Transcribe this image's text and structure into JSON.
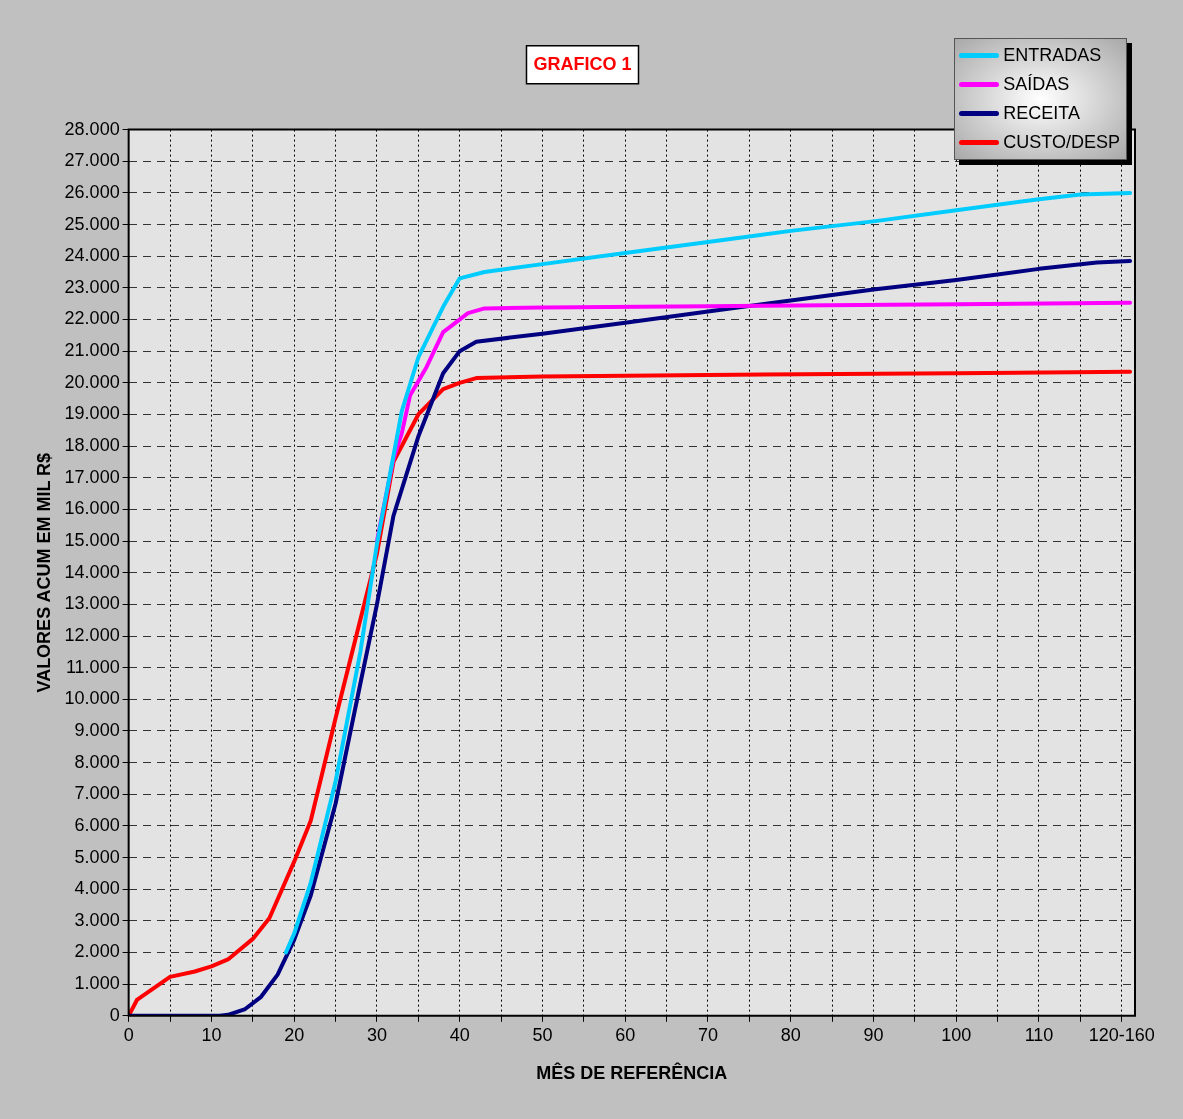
{
  "chart_data": {
    "type": "line",
    "title": "GRAFICO 1",
    "xlabel": "MÊS DE REFERÊNCIA",
    "ylabel": "VALORES ACUM EM MIL R$",
    "legend": "top right",
    "grid": true,
    "marker": "none",
    "line_style": "solid",
    "xlim": [
      0,
      121.6
    ],
    "xticks": [
      0,
      {
        "value": 5,
        "label": null
      },
      10,
      {
        "value": 15,
        "label": null
      },
      20,
      {
        "value": 25,
        "label": null
      },
      30,
      {
        "value": 35,
        "label": null
      },
      40,
      {
        "value": 45,
        "label": null
      },
      50,
      {
        "value": 55,
        "label": null
      },
      60,
      {
        "value": 65,
        "label": null
      },
      70,
      {
        "value": 75,
        "label": null
      },
      80,
      {
        "value": 85,
        "label": null
      },
      90,
      {
        "value": 95,
        "label": null
      },
      100,
      {
        "value": 105,
        "label": null
      },
      110,
      {
        "value": 115,
        "label": null
      },
      {
        "value": 120,
        "label": "120-160"
      }
    ],
    "ylim": [
      0,
      28000
    ],
    "yticks": [
      0,
      {
        "value": 1000,
        "label": "1.000"
      },
      {
        "value": 2000,
        "label": "2.000"
      },
      {
        "value": 3000,
        "label": "3.000"
      },
      {
        "value": 4000,
        "label": "4.000"
      },
      {
        "value": 5000,
        "label": "5.000"
      },
      {
        "value": 6000,
        "label": "6.000"
      },
      {
        "value": 7000,
        "label": "7.000"
      },
      {
        "value": 8000,
        "label": "8.000"
      },
      {
        "value": 9000,
        "label": "9.000"
      },
      {
        "value": 10000,
        "label": "10.000"
      },
      {
        "value": 11000,
        "label": "11.000"
      },
      {
        "value": 12000,
        "label": "12.000"
      },
      {
        "value": 13000,
        "label": "13.000"
      },
      {
        "value": 14000,
        "label": "14.000"
      },
      {
        "value": 15000,
        "label": "15.000"
      },
      {
        "value": 16000,
        "label": "16.000"
      },
      {
        "value": 17000,
        "label": "17.000"
      },
      {
        "value": 18000,
        "label": "18.000"
      },
      {
        "value": 19000,
        "label": "19.000"
      },
      {
        "value": 20000,
        "label": "20.000"
      },
      {
        "value": 21000,
        "label": "21.000"
      },
      {
        "value": 22000,
        "label": "22.000"
      },
      {
        "value": 23000,
        "label": "23.000"
      },
      {
        "value": 24000,
        "label": "24.000"
      },
      {
        "value": 25000,
        "label": "25.000"
      },
      {
        "value": 26000,
        "label": "26.000"
      },
      {
        "value": 27000,
        "label": "27.000"
      },
      {
        "value": 28000,
        "label": "28.000"
      }
    ],
    "series": [
      {
        "name": "ENTRADAS",
        "color": "#00ccff",
        "x": [
          19,
          20,
          22,
          25,
          28,
          30,
          33,
          35,
          38,
          40,
          43,
          50,
          60,
          70,
          80,
          90,
          100,
          110,
          115,
          121
        ],
        "values": [
          2000,
          2600,
          4200,
          7400,
          11500,
          14900,
          19100,
          20800,
          22400,
          23300,
          23500,
          23750,
          24100,
          24450,
          24800,
          25100,
          25450,
          25800,
          25950,
          26000
        ]
      },
      {
        "name": "SAÍDAS",
        "color": "#ff00ff",
        "x": [
          30,
          32,
          33,
          34,
          36,
          38,
          39,
          41,
          43,
          50,
          70,
          100,
          121
        ],
        "values": [
          15000,
          17600,
          18400,
          19600,
          20500,
          21600,
          21800,
          22200,
          22350,
          22380,
          22420,
          22480,
          22530
        ]
      },
      {
        "name": "RECEITA",
        "color": "#000080",
        "x": [
          0,
          11,
          12,
          14,
          16,
          18,
          20,
          22,
          25,
          28,
          30,
          32,
          35,
          38,
          40,
          42,
          50,
          60,
          70,
          80,
          90,
          100,
          110,
          117,
          121
        ],
        "values": [
          0,
          0,
          30,
          200,
          600,
          1300,
          2400,
          3800,
          6700,
          10500,
          13000,
          15800,
          18300,
          20300,
          21000,
          21300,
          21550,
          21900,
          22250,
          22600,
          22950,
          23250,
          23600,
          23800,
          23850
        ]
      },
      {
        "name": "CUSTO/DESP",
        "color": "#ff0000",
        "x": [
          0,
          1,
          5,
          8,
          10,
          12,
          15,
          17,
          20,
          22,
          25,
          30,
          32,
          35,
          38,
          40,
          42,
          50,
          70,
          100,
          121
        ],
        "values": [
          0,
          500,
          1230,
          1400,
          1560,
          1780,
          2430,
          3080,
          4870,
          6160,
          9400,
          14600,
          17500,
          19000,
          19800,
          20000,
          20150,
          20200,
          20250,
          20300,
          20350
        ]
      }
    ]
  }
}
